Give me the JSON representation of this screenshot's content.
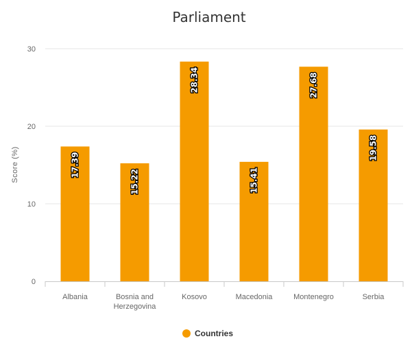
{
  "chart_data": {
    "type": "bar",
    "title": "Parliament",
    "ylabel": "Score (%)",
    "xlabel": "",
    "categories": [
      "Albania",
      "Bosnia and Herzegovina",
      "Kosovo",
      "Macedonia",
      "Montenegro",
      "Serbia"
    ],
    "category_lines": [
      [
        "Albania"
      ],
      [
        "Bosnia and",
        "Herzegovina"
      ],
      [
        "Kosovo"
      ],
      [
        "Macedonia"
      ],
      [
        "Montenegro"
      ],
      [
        "Serbia"
      ]
    ],
    "series": [
      {
        "name": "Countries",
        "color": "#f59b00",
        "values": [
          17.39,
          15.22,
          28.34,
          15.41,
          27.68,
          19.58
        ]
      }
    ],
    "data_labels": [
      "17.39",
      "15.22",
      "28.34",
      "15.41",
      "27.68",
      "19.58"
    ],
    "ylim": [
      0,
      30
    ],
    "yticks": [
      0,
      10,
      20,
      30
    ],
    "ytick_labels": [
      "0",
      "10",
      "20",
      "30"
    ],
    "grid": true,
    "legend_position": "bottom-center"
  }
}
